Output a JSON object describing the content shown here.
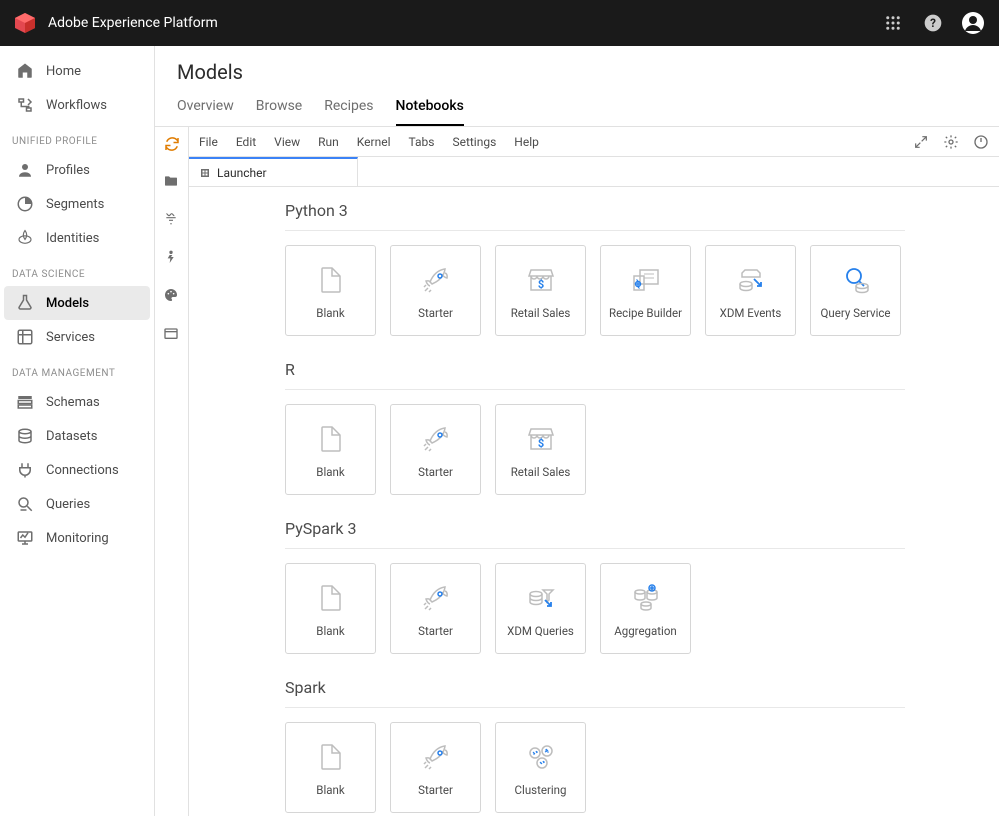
{
  "header": {
    "product_name": "Adobe Experience Platform"
  },
  "sidebar": {
    "top": [
      {
        "id": "home",
        "label": "Home",
        "icon": "home"
      },
      {
        "id": "workflows",
        "label": "Workflows",
        "icon": "workflow"
      }
    ],
    "sections": [
      {
        "label": "UNIFIED PROFILE",
        "items": [
          {
            "id": "profiles",
            "label": "Profiles",
            "icon": "profile"
          },
          {
            "id": "segments",
            "label": "Segments",
            "icon": "segment"
          },
          {
            "id": "identities",
            "label": "Identities",
            "icon": "identity"
          }
        ]
      },
      {
        "label": "DATA SCIENCE",
        "items": [
          {
            "id": "models",
            "label": "Models",
            "icon": "flask",
            "active": true
          },
          {
            "id": "services",
            "label": "Services",
            "icon": "services"
          }
        ]
      },
      {
        "label": "DATA MANAGEMENT",
        "items": [
          {
            "id": "schemas",
            "label": "Schemas",
            "icon": "schema"
          },
          {
            "id": "datasets",
            "label": "Datasets",
            "icon": "database"
          },
          {
            "id": "connections",
            "label": "Connections",
            "icon": "plug"
          },
          {
            "id": "queries",
            "label": "Queries",
            "icon": "query"
          },
          {
            "id": "monitoring",
            "label": "Monitoring",
            "icon": "monitor"
          }
        ]
      }
    ]
  },
  "page": {
    "title": "Models",
    "subtabs": [
      {
        "id": "overview",
        "label": "Overview"
      },
      {
        "id": "browse",
        "label": "Browse"
      },
      {
        "id": "recipes",
        "label": "Recipes"
      },
      {
        "id": "notebooks",
        "label": "Notebooks",
        "active": true
      }
    ]
  },
  "notebook": {
    "menubar": [
      "File",
      "Edit",
      "View",
      "Run",
      "Kernel",
      "Tabs",
      "Settings",
      "Help"
    ],
    "tab": {
      "label": "Launcher"
    },
    "kernels": [
      {
        "name": "Python 3",
        "cards": [
          {
            "label": "Blank",
            "icon": "blank"
          },
          {
            "label": "Starter",
            "icon": "rocket"
          },
          {
            "label": "Retail Sales",
            "icon": "retail"
          },
          {
            "label": "Recipe Builder",
            "icon": "recipe-builder"
          },
          {
            "label": "XDM Events",
            "icon": "xdm-events"
          },
          {
            "label": "Query Service",
            "icon": "query-service"
          }
        ]
      },
      {
        "name": "R",
        "cards": [
          {
            "label": "Blank",
            "icon": "blank"
          },
          {
            "label": "Starter",
            "icon": "rocket"
          },
          {
            "label": "Retail Sales",
            "icon": "retail"
          }
        ]
      },
      {
        "name": "PySpark 3",
        "cards": [
          {
            "label": "Blank",
            "icon": "blank"
          },
          {
            "label": "Starter",
            "icon": "rocket"
          },
          {
            "label": "XDM Queries",
            "icon": "xdm-queries"
          },
          {
            "label": "Aggregation",
            "icon": "aggregation"
          }
        ]
      },
      {
        "name": "Spark",
        "cards": [
          {
            "label": "Blank",
            "icon": "blank"
          },
          {
            "label": "Starter",
            "icon": "rocket"
          },
          {
            "label": "Clustering",
            "icon": "clustering"
          }
        ]
      }
    ]
  },
  "colors": {
    "accent_blue": "#2680eb",
    "icon_gray": "#bdbdbd",
    "header_bg": "#1a1a1a",
    "border": "#e1e1e1"
  }
}
